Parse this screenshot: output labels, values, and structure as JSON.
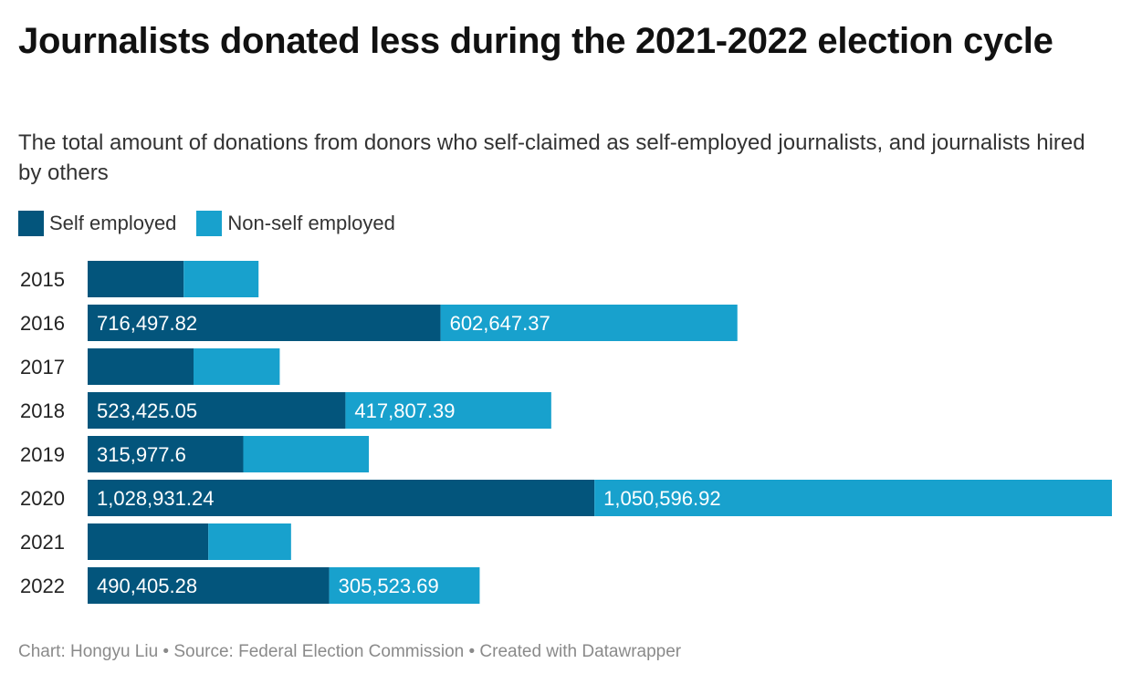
{
  "header": {
    "title": "Journalists donated less during the 2021-2022 election cycle",
    "subtitle": "The total amount of donations from donors who self-claimed as self-employed journalists, and journalists hired by others"
  },
  "legend": {
    "items": [
      {
        "label": "Self employed",
        "color": "#03557c"
      },
      {
        "label": "Non-self employed",
        "color": "#18a1cd"
      }
    ]
  },
  "chart_data": {
    "type": "bar",
    "orientation": "horizontal",
    "stacked": true,
    "categories": [
      "2015",
      "2016",
      "2017",
      "2018",
      "2019",
      "2020",
      "2021",
      "2022"
    ],
    "series": [
      {
        "name": "Self employed",
        "color": "#03557c",
        "values": [
          195000,
          716497.82,
          215000,
          523425.05,
          315977.6,
          1028931.24,
          245000,
          490405.28
        ],
        "labels": [
          "",
          "716,497.82",
          "",
          "523,425.05",
          "315,977.6",
          "1,028,931.24",
          "",
          "490,405.28"
        ]
      },
      {
        "name": "Non-self employed",
        "color": "#18a1cd",
        "values": [
          152000,
          602647.37,
          175000,
          417807.39,
          255000,
          1050596.92,
          168000,
          305523.69
        ],
        "labels": [
          "",
          "602,647.37",
          "",
          "417,807.39",
          "",
          "1,050,596.92",
          "",
          "305,523.69"
        ]
      }
    ],
    "xlim": [
      0,
      2079528.16
    ],
    "grid": false,
    "legend_position": "top-left"
  },
  "footer": {
    "credit": "Chart: Hongyu Liu • Source: Federal Election Commission • Created with Datawrapper"
  }
}
